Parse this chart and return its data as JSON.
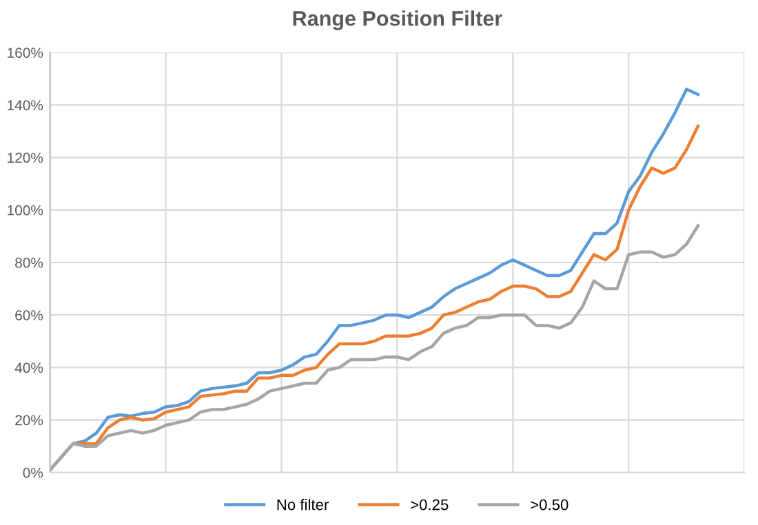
{
  "chart_data": {
    "type": "line",
    "title": "Range Position Filter",
    "categories": [
      null,
      null,
      null,
      null,
      null,
      null,
      null,
      null,
      null,
      null,
      null,
      null,
      null,
      null,
      null,
      null,
      null,
      null,
      null,
      null,
      null,
      null,
      null,
      null,
      null,
      null,
      null,
      null,
      null,
      null,
      null,
      null,
      null,
      null,
      null,
      null,
      null,
      null,
      null,
      null,
      null,
      null,
      null,
      null,
      null,
      null,
      null,
      null,
      null,
      null,
      null,
      null,
      null,
      null,
      null,
      null,
      null,
      null,
      null,
      null,
      null
    ],
    "series": [
      {
        "name": "No filter",
        "color": "#5b9bd5",
        "values": [
          1,
          6,
          11,
          12,
          15,
          21,
          22,
          21.5,
          22.5,
          23,
          25,
          25.5,
          27,
          31,
          32,
          32.5,
          33,
          34,
          38,
          38,
          39,
          41,
          44,
          45,
          50,
          56,
          56,
          57,
          58,
          60,
          60,
          59,
          61,
          63,
          67,
          70,
          72,
          74,
          76,
          79,
          81,
          79,
          77,
          75,
          75,
          77,
          84,
          91,
          91,
          95,
          107,
          113,
          122,
          129,
          137,
          146,
          144,
          null,
          null,
          null,
          null
        ]
      },
      {
        "name": ">0.25",
        "color": "#ed7d31",
        "values": [
          1,
          6,
          11,
          11,
          11,
          17,
          20,
          21,
          20,
          20.5,
          23,
          24,
          25,
          29,
          29.5,
          30,
          31,
          31,
          36,
          36,
          37,
          37,
          39,
          40,
          45,
          49,
          49,
          49,
          50,
          52,
          52,
          52,
          53,
          55,
          60,
          61,
          63,
          65,
          66,
          69,
          71,
          71,
          70,
          67,
          67,
          69,
          76,
          83,
          81,
          85,
          100,
          109,
          116,
          114,
          116,
          123,
          132,
          null,
          null,
          null,
          null
        ]
      },
      {
        "name": ">0.50",
        "color": "#a5a5a5",
        "values": [
          1,
          6,
          11,
          10,
          10,
          14,
          15,
          16,
          15,
          16,
          18,
          19,
          20,
          23,
          24,
          24,
          25,
          26,
          28,
          31,
          32,
          33,
          34,
          34,
          39,
          40,
          43,
          43,
          43,
          44,
          44,
          43,
          46,
          48,
          53,
          55,
          56,
          59,
          59,
          60,
          60,
          60,
          56,
          56,
          55,
          57,
          63,
          73,
          70,
          70,
          83,
          84,
          84,
          82,
          83,
          87,
          94,
          null,
          null,
          null,
          null
        ]
      }
    ],
    "ylim": [
      0,
      160
    ],
    "yticks": [
      {
        "value": 0,
        "label": "0%"
      },
      {
        "value": 20,
        "label": "20%"
      },
      {
        "value": 40,
        "label": "40%"
      },
      {
        "value": 60,
        "label": "60%"
      },
      {
        "value": 80,
        "label": "80%"
      },
      {
        "value": 100,
        "label": "100%"
      },
      {
        "value": 120,
        "label": "120%"
      },
      {
        "value": 140,
        "label": "140%"
      },
      {
        "value": 160,
        "label": "160%"
      }
    ],
    "grid": true,
    "legend": "bottom"
  }
}
